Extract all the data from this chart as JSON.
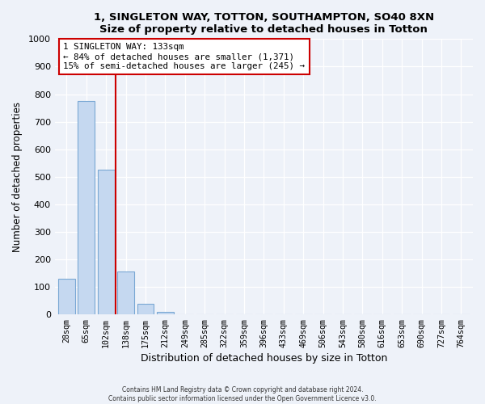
{
  "title1": "1, SINGLETON WAY, TOTTON, SOUTHAMPTON, SO40 8XN",
  "title2": "Size of property relative to detached houses in Totton",
  "xlabel": "Distribution of detached houses by size in Totton",
  "ylabel": "Number of detached properties",
  "bar_labels": [
    "28sqm",
    "65sqm",
    "102sqm",
    "138sqm",
    "175sqm",
    "212sqm",
    "249sqm",
    "285sqm",
    "322sqm",
    "359sqm",
    "396sqm",
    "433sqm",
    "469sqm",
    "506sqm",
    "543sqm",
    "580sqm",
    "616sqm",
    "653sqm",
    "690sqm",
    "727sqm",
    "764sqm"
  ],
  "bar_values": [
    130,
    775,
    525,
    155,
    40,
    10,
    0,
    0,
    0,
    0,
    0,
    0,
    0,
    0,
    0,
    0,
    0,
    0,
    0,
    0,
    0
  ],
  "bar_color": "#c5d8f0",
  "bar_edge_color": "#7aa8d4",
  "vline_color": "#cc0000",
  "vline_position": 2.5,
  "annotation_line1": "1 SINGLETON WAY: 133sqm",
  "annotation_line2": "← 84% of detached houses are smaller (1,371)",
  "annotation_line3": "15% of semi-detached houses are larger (245) →",
  "annotation_box_color": "#cc0000",
  "ylim": [
    0,
    1000
  ],
  "yticks": [
    0,
    100,
    200,
    300,
    400,
    500,
    600,
    700,
    800,
    900,
    1000
  ],
  "footer1": "Contains HM Land Registry data © Crown copyright and database right 2024.",
  "footer2": "Contains public sector information licensed under the Open Government Licence v3.0.",
  "bg_color": "#eef2f9",
  "plot_bg_color": "#eef2f9"
}
